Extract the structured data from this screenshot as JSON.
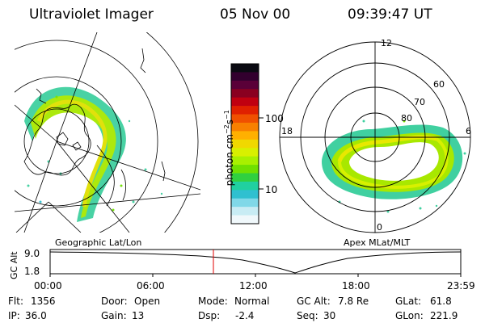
{
  "header": {
    "title": "Ultraviolet Imager",
    "date": "05 Nov 00",
    "time": "09:39:47 UT"
  },
  "colorbar": {
    "unit_label": "photon cm",
    "unit_exp1": "−2",
    "unit_s": "s",
    "unit_exp2": "−1",
    "tick_100": "100",
    "tick_10": "10",
    "colors": [
      "#0a0a12",
      "#32002e",
      "#5a0038",
      "#8a0020",
      "#c00010",
      "#e02000",
      "#f05000",
      "#f88000",
      "#ffb000",
      "#f0d800",
      "#d8f000",
      "#a8f000",
      "#70e000",
      "#30d040",
      "#20d0a0",
      "#30c0d0",
      "#80d8e8",
      "#c8ecf4",
      "#f0f8fb"
    ]
  },
  "left_panel": {
    "caption": "Geographic Lat/Lon"
  },
  "right_panel": {
    "caption": "Apex MLat/MLT",
    "mlt_12": "12",
    "mlt_18": "18",
    "mlt_6": "6",
    "mlt_0": "0",
    "lat_60": "60",
    "lat_70": "70",
    "lat_80": "80"
  },
  "altitude_plot": {
    "ylabel": "GC Alt",
    "yticks": [
      "9.0",
      "1.8"
    ],
    "xticks": [
      "00:00",
      "06:00",
      "12:00",
      "18:00",
      "23:59"
    ],
    "marker_time": "09:39"
  },
  "status": {
    "flt_label": "Flt:",
    "flt_value": "1356",
    "ip_label": "IP:",
    "ip_value": "36.0",
    "door_label": "Door:",
    "door_value": "Open",
    "gain_label": "Gain:",
    "gain_value": "13",
    "mode_label": "Mode:",
    "mode_value": "Normal",
    "dsp_label": "Dsp:",
    "dsp_value": "-2.4",
    "gcalt_label": "GC Alt:",
    "gcalt_value": "7.8 Re",
    "seq_label": "Seq:",
    "seq_value": "30",
    "glat_label": "GLat:",
    "glat_value": "61.8",
    "glon_label": "GLon:",
    "glon_value": "221.9"
  }
}
